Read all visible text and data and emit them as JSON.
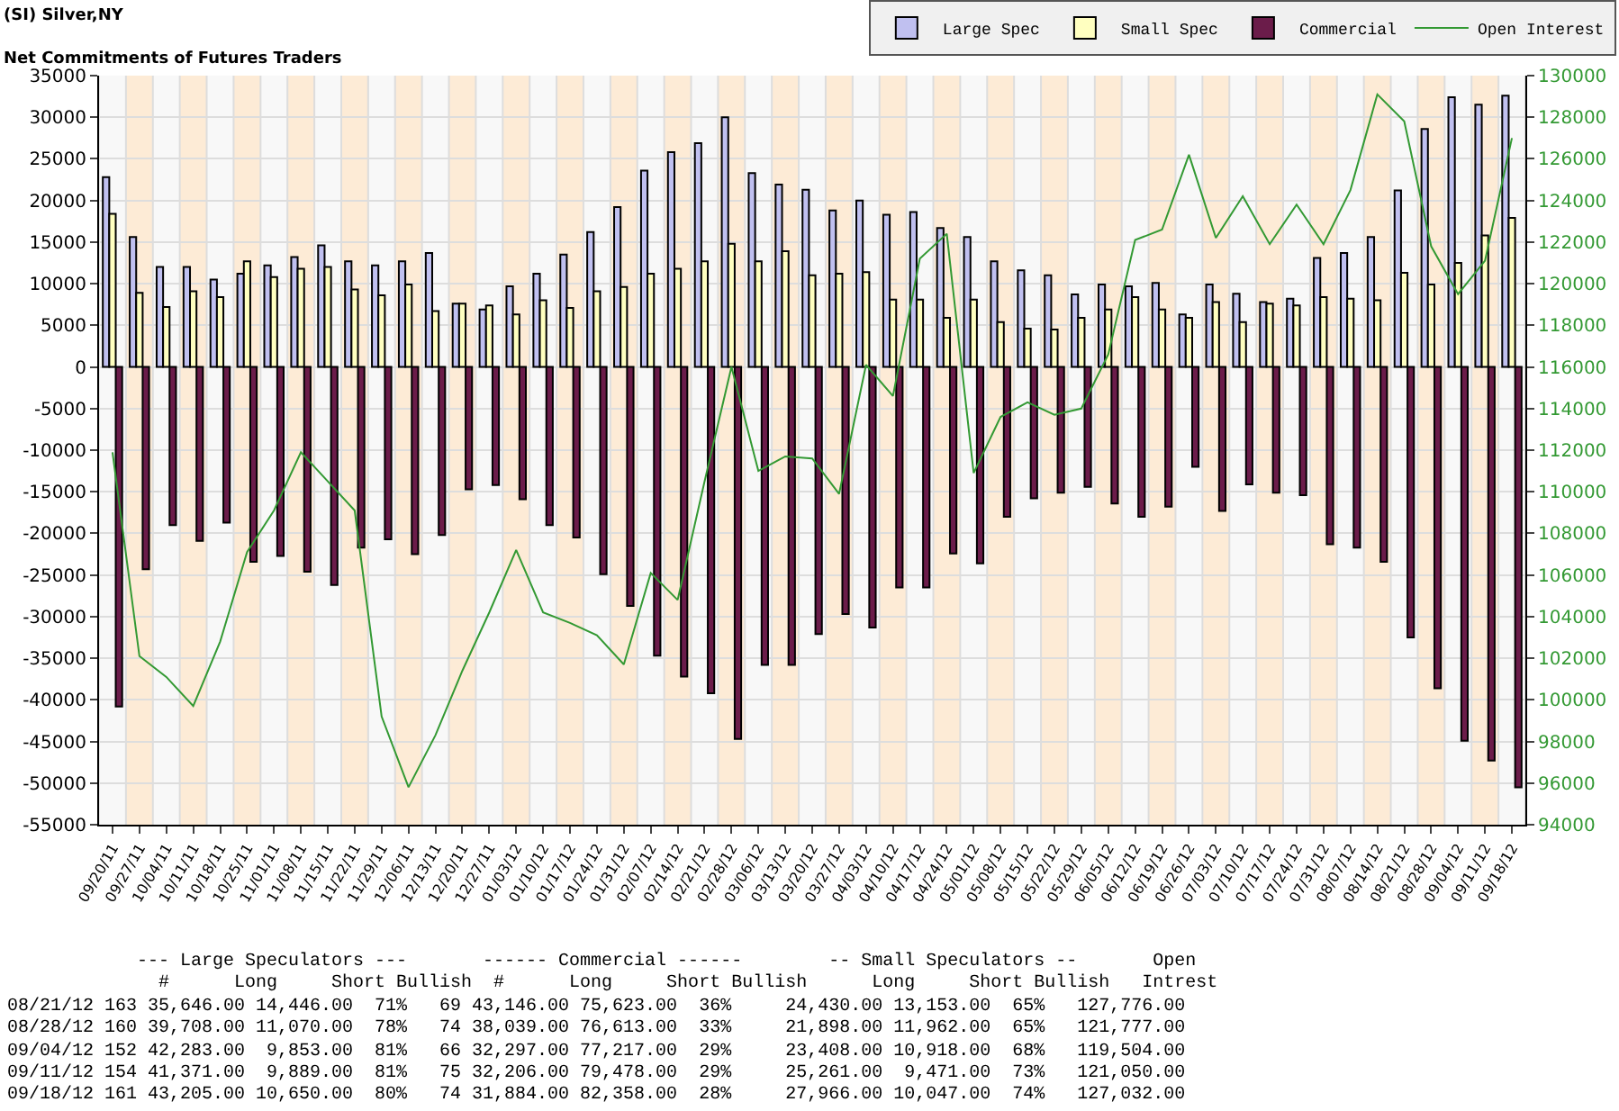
{
  "chart_data": {
    "type": "bar",
    "title": "(SI) Silver,NY",
    "subtitle": "Net Commitments of Futures Traders",
    "categories": [
      "09/20/11",
      "09/27/11",
      "10/04/11",
      "10/11/11",
      "10/18/11",
      "10/25/11",
      "11/01/11",
      "11/08/11",
      "11/15/11",
      "11/22/11",
      "11/29/11",
      "12/06/11",
      "12/13/11",
      "12/20/11",
      "12/27/11",
      "01/03/12",
      "01/10/12",
      "01/17/12",
      "01/24/12",
      "01/31/12",
      "02/07/12",
      "02/14/12",
      "02/21/12",
      "02/28/12",
      "03/06/12",
      "03/13/12",
      "03/20/12",
      "03/27/12",
      "04/03/12",
      "04/10/12",
      "04/17/12",
      "04/24/12",
      "05/01/12",
      "05/08/12",
      "05/15/12",
      "05/22/12",
      "05/29/12",
      "06/05/12",
      "06/12/12",
      "06/19/12",
      "06/26/12",
      "07/03/12",
      "07/10/12",
      "07/17/12",
      "07/24/12",
      "07/31/12",
      "08/07/12",
      "08/14/12",
      "08/21/12",
      "08/28/12",
      "09/04/12",
      "09/11/12",
      "09/18/12"
    ],
    "series": [
      {
        "name": "Large Spec",
        "color": "#c0c0f0",
        "values": [
          22800,
          15600,
          12000,
          12000,
          10500,
          11200,
          12200,
          13200,
          14600,
          12700,
          12200,
          12700,
          13700,
          7600,
          6900,
          9700,
          11200,
          13500,
          16200,
          19200,
          23600,
          25800,
          26900,
          30000,
          23300,
          21900,
          21300,
          18800,
          20000,
          18300,
          18600,
          16700,
          15600,
          12700,
          11600,
          11000,
          8700,
          9900,
          9700,
          10100,
          6300,
          9900,
          8800,
          7800,
          8200,
          13100,
          13700,
          15600,
          21200,
          28600,
          32400,
          31500,
          32600
        ]
      },
      {
        "name": "Small Spec",
        "color": "#ffffc0",
        "values": [
          18400,
          8900,
          7200,
          9100,
          8400,
          12700,
          10800,
          11800,
          12000,
          9300,
          8600,
          9900,
          6700,
          7600,
          7400,
          6300,
          8000,
          7100,
          9100,
          9600,
          11200,
          11800,
          12700,
          14800,
          12700,
          13900,
          11000,
          11200,
          11400,
          8100,
          8100,
          5900,
          8100,
          5400,
          4600,
          4500,
          5900,
          6900,
          8400,
          6900,
          5900,
          7800,
          5400,
          7600,
          7400,
          8400,
          8200,
          8000,
          11300,
          9900,
          12500,
          15800,
          17900
        ]
      },
      {
        "name": "Commercial",
        "color": "#6b1c4a",
        "values": [
          -40800,
          -24300,
          -19000,
          -20900,
          -18700,
          -23400,
          -22700,
          -24600,
          -26200,
          -21700,
          -20700,
          -22500,
          -20200,
          -14700,
          -14200,
          -15900,
          -19000,
          -20500,
          -24900,
          -28700,
          -34700,
          -37200,
          -39200,
          -44700,
          -35800,
          -35800,
          -32100,
          -29700,
          -31300,
          -26500,
          -26500,
          -22400,
          -23600,
          -18000,
          -15800,
          -15100,
          -14400,
          -16400,
          -18000,
          -16800,
          -12000,
          -17300,
          -14100,
          -15100,
          -15400,
          -21300,
          -21700,
          -23400,
          -32500,
          -38600,
          -44900,
          -47300,
          -50500
        ]
      },
      {
        "name": "Open Interest",
        "type": "line",
        "axis": "y2",
        "color": "#339933",
        "values": [
          111900,
          102100,
          101100,
          99700,
          102800,
          107100,
          109100,
          111900,
          110500,
          109100,
          99200,
          95800,
          98300,
          101400,
          104200,
          107200,
          104200,
          103700,
          103100,
          101700,
          106100,
          104800,
          110500,
          116000,
          111000,
          111700,
          111600,
          109900,
          116100,
          114600,
          121200,
          122400,
          110900,
          113600,
          114300,
          113700,
          114000,
          116600,
          122100,
          122600,
          126200,
          122200,
          124200,
          121900,
          123800,
          121900,
          124500,
          129100,
          127800,
          121800,
          119500,
          121100,
          127000
        ]
      }
    ],
    "ylim": [
      -55000,
      35000
    ],
    "yticks": [
      -55000,
      -50000,
      -45000,
      -40000,
      -35000,
      -30000,
      -25000,
      -20000,
      -15000,
      -10000,
      -5000,
      0,
      5000,
      10000,
      15000,
      20000,
      25000,
      30000,
      35000
    ],
    "y2lim": [
      94000,
      130000
    ],
    "y2ticks": [
      94000,
      96000,
      98000,
      100000,
      102000,
      104000,
      106000,
      108000,
      110000,
      112000,
      114000,
      116000,
      118000,
      120000,
      122000,
      124000,
      126000,
      128000,
      130000
    ],
    "grid": "y",
    "legend": "top right",
    "marker": "none",
    "bands": [
      {
        "axis": "x",
        "from": "09/27/11",
        "to": "09/27/11",
        "color": "#fdebd6"
      },
      {
        "axis": "x",
        "from": "10/11/11",
        "to": "10/11/11",
        "color": "#fdebd6"
      },
      {
        "axis": "x",
        "from": "10/25/11",
        "to": "10/25/11",
        "color": "#fdebd6"
      },
      {
        "axis": "x",
        "from": "11/08/11",
        "to": "11/08/11",
        "color": "#fdebd6"
      },
      {
        "axis": "x",
        "from": "11/22/11",
        "to": "11/22/11",
        "color": "#fdebd6"
      },
      {
        "axis": "x",
        "from": "12/06/11",
        "to": "12/06/11",
        "color": "#fdebd6"
      },
      {
        "axis": "x",
        "from": "12/20/11",
        "to": "12/20/11",
        "color": "#fdebd6"
      },
      {
        "axis": "x",
        "from": "01/03/12",
        "to": "01/03/12",
        "color": "#fdebd6"
      },
      {
        "axis": "x",
        "from": "01/17/12",
        "to": "01/17/12",
        "color": "#fdebd6"
      },
      {
        "axis": "x",
        "from": "01/31/12",
        "to": "01/31/12",
        "color": "#fdebd6"
      },
      {
        "axis": "x",
        "from": "02/14/12",
        "to": "02/14/12",
        "color": "#fdebd6"
      },
      {
        "axis": "x",
        "from": "02/28/12",
        "to": "02/28/12",
        "color": "#fdebd6"
      },
      {
        "axis": "x",
        "from": "03/13/12",
        "to": "03/13/12",
        "color": "#fdebd6"
      },
      {
        "axis": "x",
        "from": "03/27/12",
        "to": "03/27/12",
        "color": "#fdebd6"
      },
      {
        "axis": "x",
        "from": "04/10/12",
        "to": "04/10/12",
        "color": "#fdebd6"
      },
      {
        "axis": "x",
        "from": "04/24/12",
        "to": "04/24/12",
        "color": "#fdebd6"
      },
      {
        "axis": "x",
        "from": "05/08/12",
        "to": "05/08/12",
        "color": "#fdebd6"
      },
      {
        "axis": "x",
        "from": "05/22/12",
        "to": "05/22/12",
        "color": "#fdebd6"
      },
      {
        "axis": "x",
        "from": "06/05/12",
        "to": "06/05/12",
        "color": "#fdebd6"
      },
      {
        "axis": "x",
        "from": "06/19/12",
        "to": "06/19/12",
        "color": "#fdebd6"
      },
      {
        "axis": "x",
        "from": "07/03/12",
        "to": "07/03/12",
        "color": "#fdebd6"
      },
      {
        "axis": "x",
        "from": "07/17/12",
        "to": "07/17/12",
        "color": "#fdebd6"
      },
      {
        "axis": "x",
        "from": "07/31/12",
        "to": "07/31/12",
        "color": "#fdebd6"
      },
      {
        "axis": "x",
        "from": "08/14/12",
        "to": "08/14/12",
        "color": "#fdebd6"
      },
      {
        "axis": "x",
        "from": "08/28/12",
        "to": "08/28/12",
        "color": "#fdebd6"
      },
      {
        "axis": "x",
        "from": "09/11/12",
        "to": "09/11/12",
        "color": "#fdebd6"
      }
    ],
    "annotations": [
      "            --- Large Speculators ---       ------ Commercial ------        -- Small Speculators --       Open",
      "              #      Long     Short Bullish  #      Long     Short Bullish      Long     Short Bullish   Intrest",
      "08/21/12 163 35,646.00 14,446.00  71%   69 43,146.00 75,623.00  36%     24,430.00 13,153.00  65%   127,776.00",
      "08/28/12 160 39,708.00 11,070.00  78%   74 38,039.00 76,613.00  33%     21,898.00 11,962.00  65%   121,777.00",
      "09/04/12 152 42,283.00  9,853.00  81%   66 32,297.00 77,217.00  29%     23,408.00 10,918.00  68%   119,504.00",
      "09/11/12 154 41,371.00  9,889.00  81%   75 32,206.00 79,478.00  29%     25,261.00  9,471.00  73%   121,050.00",
      "09/18/12 161 43,205.00 10,650.00  80%   74 31,884.00 82,358.00  28%     27,966.00 10,047.00  74%   127,032.00"
    ]
  }
}
